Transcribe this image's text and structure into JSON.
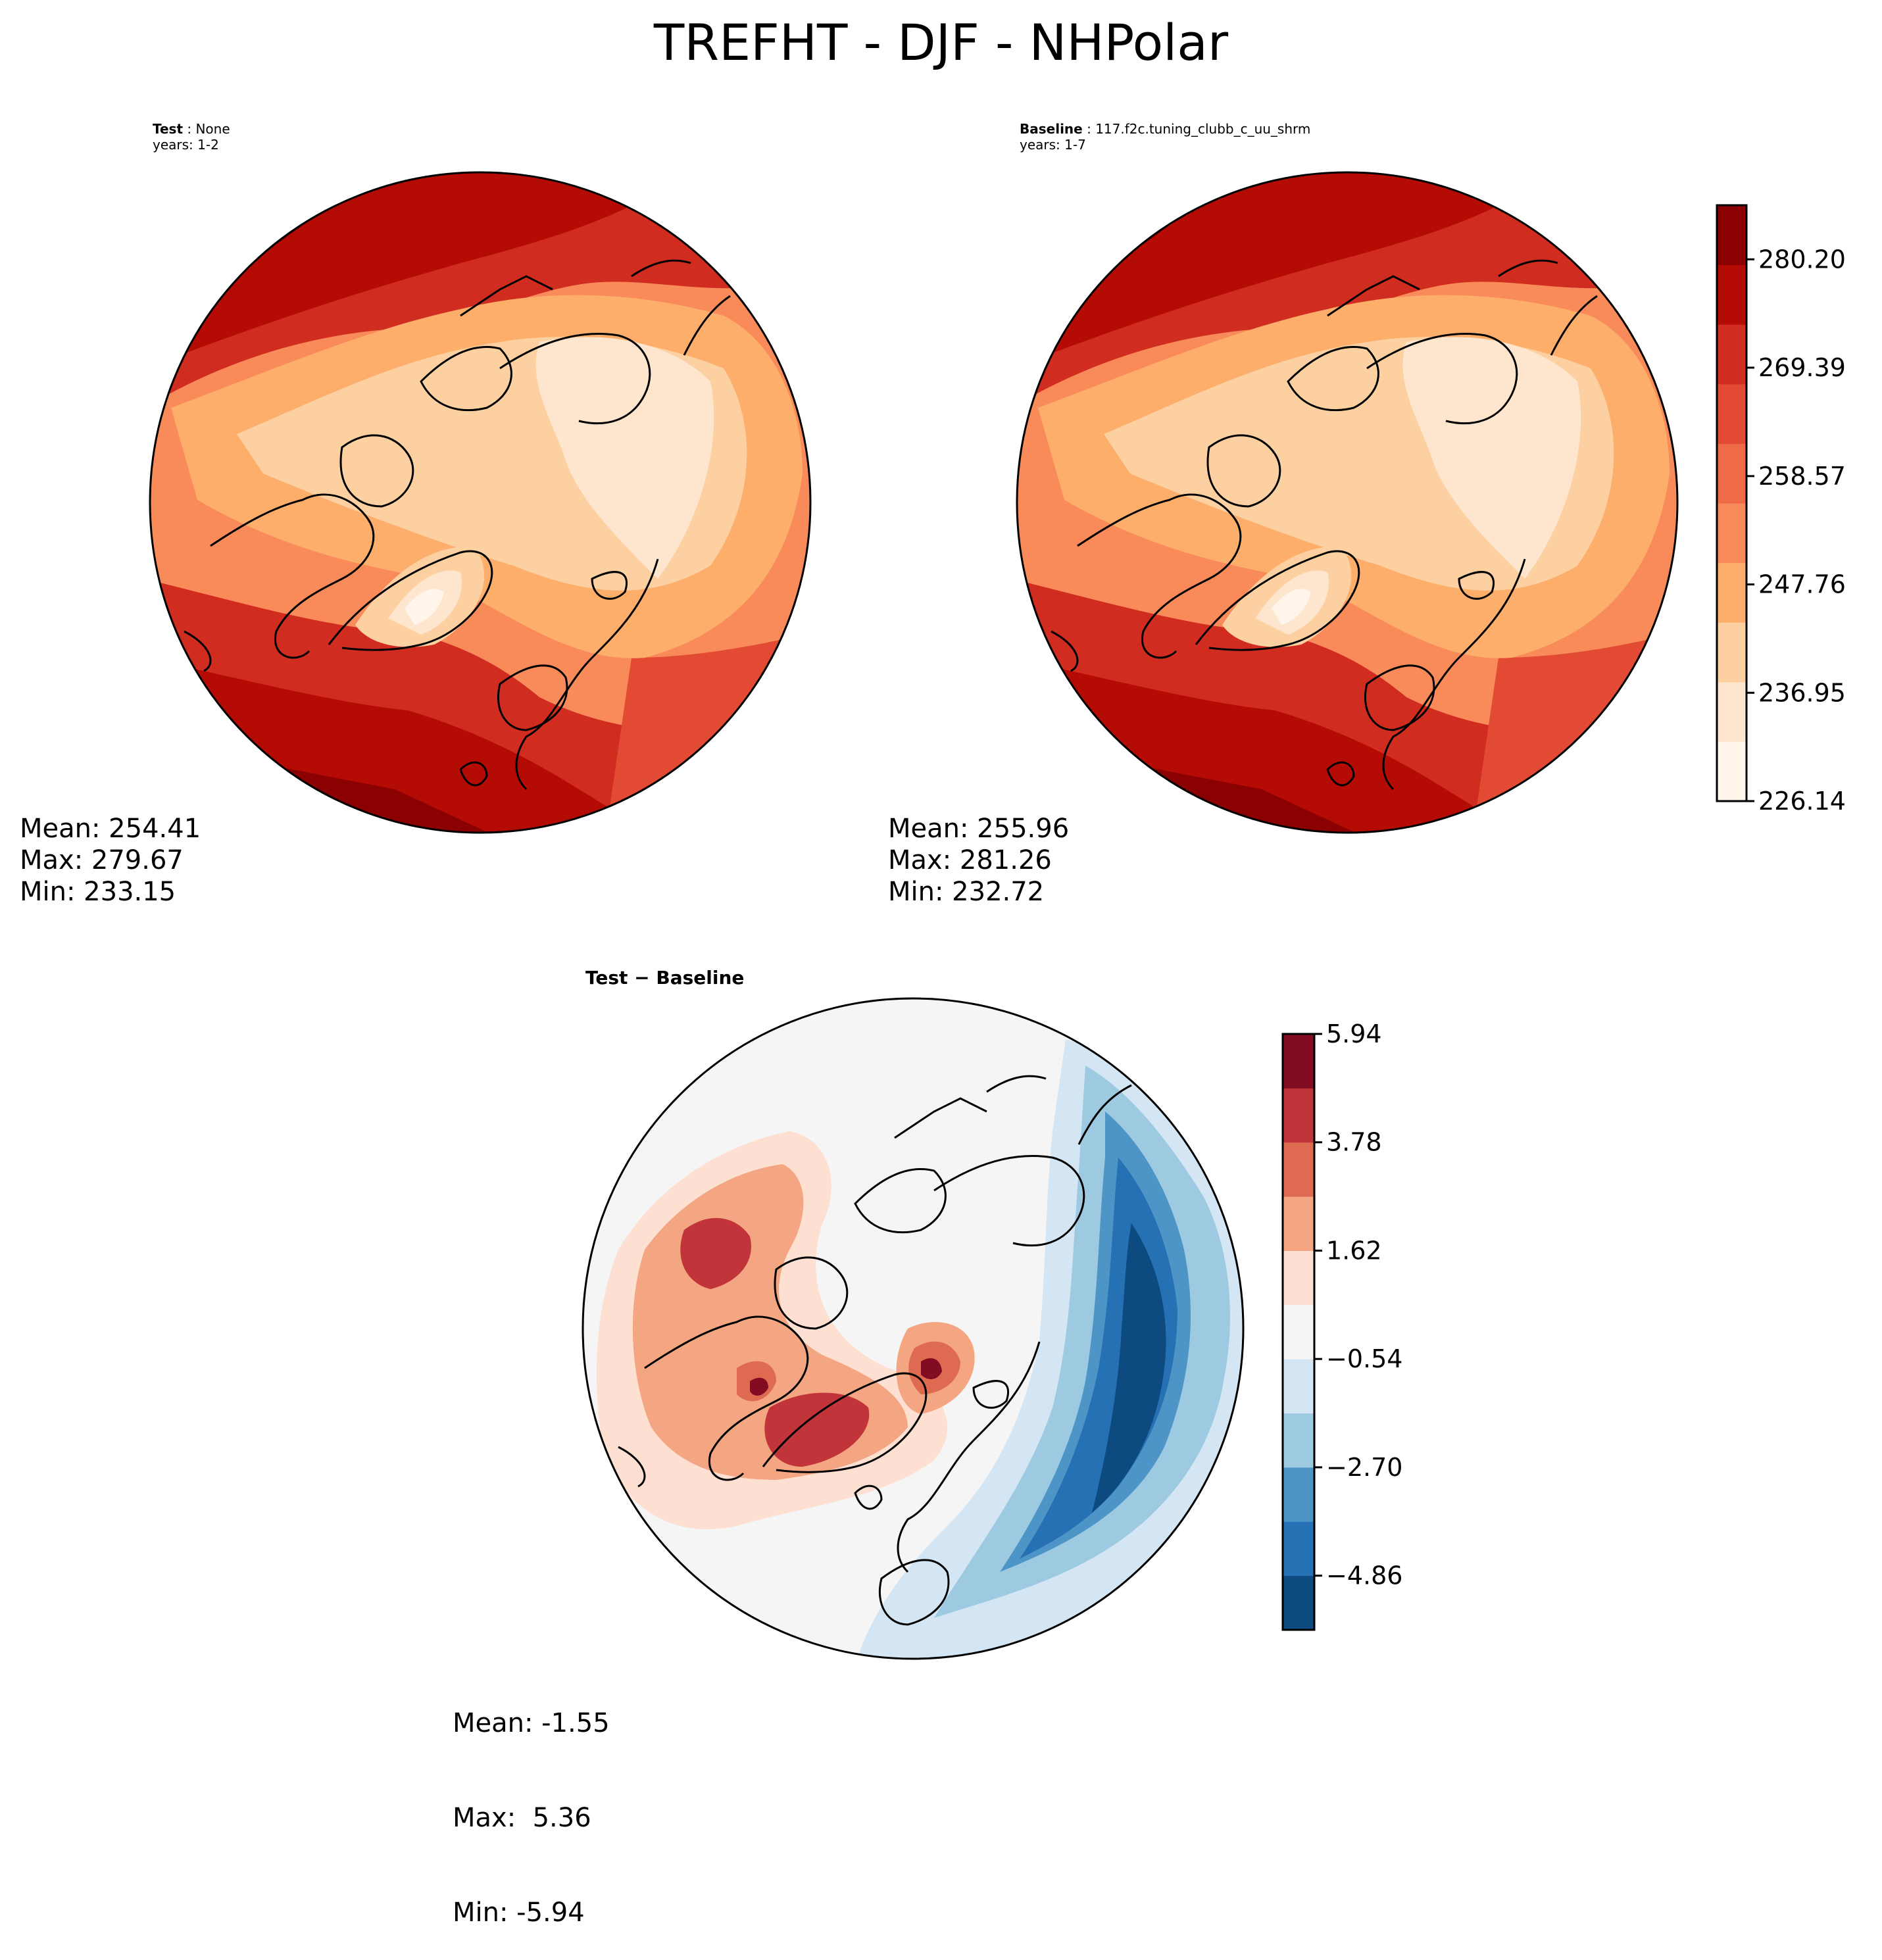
{
  "title": "TREFHT - DJF - NHPolar",
  "panels": {
    "test": {
      "name": "Test",
      "case": "None",
      "years": "years: 1-2",
      "mean": "Mean: 254.41",
      "max": "Max: 279.67",
      "min": "Min: 233.15"
    },
    "baseline": {
      "name": "Baseline",
      "case": "117.f2c.tuning_clubb_c_uu_shrm",
      "years": "years: 1-7",
      "mean": "Mean: 255.96",
      "max": "Max: 281.26",
      "min": "Min: 232.72"
    },
    "diff": {
      "title": "Test − Baseline",
      "mean": "Mean: -1.55",
      "max": "Max:  5.36",
      "min": "Min: -5.94"
    }
  },
  "colors": {
    "abs_levels": [
      "#fff5eb",
      "#fee6ce",
      "#fdd0a2",
      "#fdae6b",
      "#f98a5a",
      "#ef6a47",
      "#e34a33",
      "#d02d20",
      "#b50b05",
      "#8b0000"
    ],
    "diff_levels": [
      "#0d4a80",
      "#2670b4",
      "#4d95c7",
      "#9ecae1",
      "#d4e6f3",
      "#f5f5f5",
      "#fde0d2",
      "#f4a582",
      "#de6a52",
      "#c1353a",
      "#820c22"
    ]
  },
  "chart_data": [
    {
      "type": "heatmap",
      "name": "Test",
      "projection": "north-polar-stereographic",
      "variable": "TREFHT",
      "season": "DJF",
      "region": "NHPolar",
      "mean": 254.41,
      "max": 279.67,
      "min": 233.15
    },
    {
      "type": "heatmap",
      "name": "Baseline",
      "projection": "north-polar-stereographic",
      "variable": "TREFHT",
      "season": "DJF",
      "region": "NHPolar",
      "mean": 255.96,
      "max": 281.26,
      "min": 232.72,
      "colorbar": {
        "range": [
          226.14,
          285.6
        ],
        "ticks": [
          226.14,
          236.95,
          247.76,
          258.57,
          269.39,
          280.2
        ],
        "tick_labels": [
          "226.14",
          "236.95",
          "247.76",
          "258.57",
          "269.39",
          "280.20"
        ]
      }
    },
    {
      "type": "heatmap",
      "name": "Test − Baseline",
      "projection": "north-polar-stereographic",
      "mean": -1.55,
      "max": 5.36,
      "min": -5.94,
      "colorbar": {
        "range": [
          -5.94,
          5.94
        ],
        "ticks": [
          -4.86,
          -2.7,
          -0.54,
          1.62,
          3.78,
          5.94
        ],
        "tick_labels": [
          "−4.86",
          "−2.70",
          "−0.54",
          "1.62",
          "3.78",
          "5.94"
        ]
      }
    }
  ]
}
